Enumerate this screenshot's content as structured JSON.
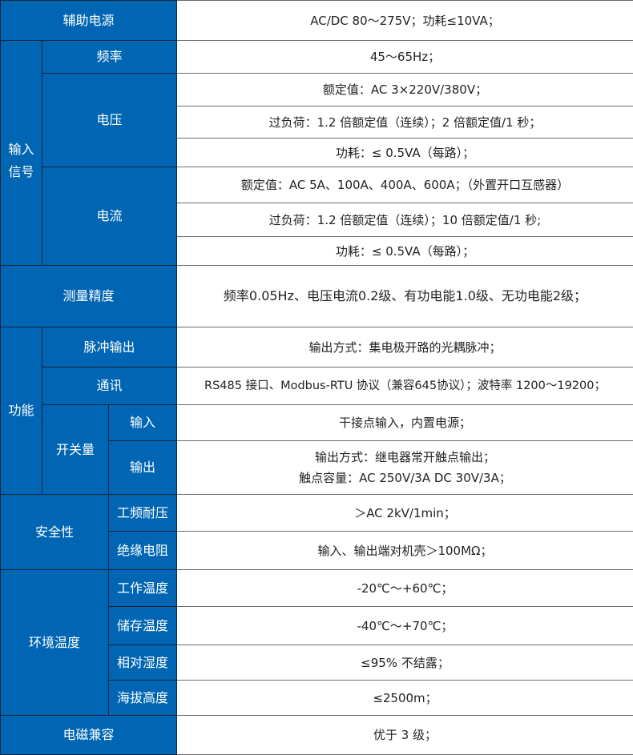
{
  "colors": {
    "header_bg": "#0066b3",
    "header_text": "#ffffff",
    "value_text": "#222222"
  },
  "rows": {
    "aux_power": {
      "label": "辅助电源",
      "value": "AC/DC 80～275V；功耗≤10VA；"
    },
    "input_signal": {
      "label_line1": "输入",
      "label_line2": "信号"
    },
    "frequency": {
      "label": "频率",
      "value": "45～65Hz；"
    },
    "voltage": {
      "label": "电压",
      "rated": "额定值：AC 3×220V/380V；",
      "overload": "过负荷：1.2 倍额定值（连续）；2 倍额定值/1 秒；",
      "power": "功耗：≤ 0.5VA（每路）；"
    },
    "current": {
      "label": "电流",
      "rated": "额定值：AC 5A、100A、400A、600A；（外置开口互感器）",
      "overload": "过负荷：1.2 倍额定值（连续）；10 倍额定值/1 秒;",
      "power": "功耗：≤ 0.5VA（每路）；"
    },
    "accuracy": {
      "label": "测量精度",
      "value": "频率0.05Hz、电压电流0.2级、有功电能1.0级、无功电能2级；"
    },
    "function": {
      "label": "功能"
    },
    "pulse": {
      "label": "脉冲输出",
      "value": "输出方式：集电极开路的光耦脉冲；"
    },
    "comm": {
      "label": "通讯",
      "value": "RS485 接口、Modbus-RTU 协议（兼容645协议）；波特率 1200～19200；"
    },
    "switch": {
      "label": "开关量",
      "input_label": "输入",
      "input_value": "干接点输入，内置电源；",
      "output_label": "输出",
      "output_line1": "输出方式：继电器常开触点输出；",
      "output_line2": "触点容量：AC 250V/3A  DC 30V/3A；"
    },
    "safety": {
      "label": "安全性",
      "withstand_label": "工频耐压",
      "withstand_value": "＞AC 2kV/1min；",
      "insulation_label": "绝缘电阻",
      "insulation_value": "输入、输出端对机壳＞100MΩ；"
    },
    "environment": {
      "label": "环境温度",
      "work_label": "工作温度",
      "work_value": "-20℃～+60℃；",
      "storage_label": "储存温度",
      "storage_value": "-40℃～+70℃；",
      "humidity_label": "相对湿度",
      "humidity_value": "≤95% 不结露；",
      "altitude_label": "海拔高度",
      "altitude_value": "≤2500m；"
    },
    "emc": {
      "label": "电磁兼容",
      "value": "优于 3 级；"
    }
  }
}
